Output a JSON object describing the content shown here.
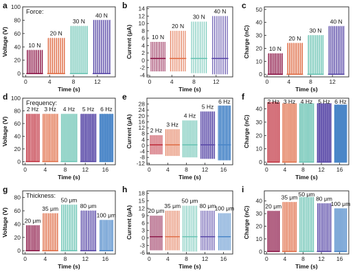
{
  "chart_data": [
    {
      "type": "line",
      "panel_label": "a",
      "inset_label": "Force:",
      "xlabel": "Time (s)",
      "ylabel": "Voltage (V)",
      "xlim": [
        -0.5,
        15
      ],
      "ylim": [
        -5,
        100
      ],
      "xticks": [
        0,
        4,
        8,
        12
      ],
      "yticks": [
        0,
        20,
        40,
        60,
        80,
        100
      ],
      "series": [
        {
          "name": "10 N",
          "color": "#8e1a4a",
          "x_range": [
            0.1,
            2.9
          ],
          "baseline": 0,
          "high": 35,
          "low": 0,
          "cycles": 9
        },
        {
          "name": "20 N",
          "color": "#e0704a",
          "x_range": [
            3.6,
            6.6
          ],
          "baseline": 0,
          "high": 53,
          "low": 0,
          "cycles": 9
        },
        {
          "name": "30 N",
          "color": "#6cc4b4",
          "x_range": [
            7.4,
            10.4
          ],
          "baseline": 0,
          "high": 71,
          "low": 0,
          "cycles": 9
        },
        {
          "name": "40 N",
          "color": "#5a4aa8",
          "x_range": [
            11.2,
            14.2
          ],
          "baseline": 0,
          "high": 80,
          "low": 0,
          "cycles": 9
        }
      ]
    },
    {
      "type": "line",
      "panel_label": "b",
      "inset_label": "",
      "xlabel": "Time (s)",
      "ylabel": "Current (μA)",
      "xlim": [
        -0.5,
        15
      ],
      "ylim": [
        -4.5,
        14.5
      ],
      "xticks": [
        0,
        4,
        8,
        12
      ],
      "yticks": [
        -4,
        -2,
        0,
        2,
        4,
        6,
        8,
        10,
        12,
        14
      ],
      "series": [
        {
          "name": "10 N",
          "color": "#8e1a4a",
          "x_range": [
            0.1,
            2.9
          ],
          "baseline": 0.5,
          "high": 5,
          "low": -3,
          "cycles": 9
        },
        {
          "name": "20 N",
          "color": "#e0704a",
          "x_range": [
            3.6,
            6.6
          ],
          "baseline": 0.5,
          "high": 8,
          "low": -3,
          "cycles": 9
        },
        {
          "name": "30 N",
          "color": "#6cc4b4",
          "x_range": [
            7.4,
            10.4
          ],
          "baseline": 0.5,
          "high": 10.5,
          "low": -3.5,
          "cycles": 9
        },
        {
          "name": "40 N",
          "color": "#5a4aa8",
          "x_range": [
            11.2,
            14.2
          ],
          "baseline": 0.5,
          "high": 12,
          "low": -3.8,
          "cycles": 9
        }
      ]
    },
    {
      "type": "line",
      "panel_label": "c",
      "inset_label": "",
      "xlabel": "Time (s)",
      "ylabel": "Charge (nC)",
      "xlim": [
        -0.5,
        15
      ],
      "ylim": [
        -2,
        52
      ],
      "xticks": [
        0,
        4,
        8,
        12
      ],
      "yticks": [
        0,
        10,
        20,
        30,
        40,
        50
      ],
      "series": [
        {
          "name": "10 N",
          "color": "#8e1a4a",
          "x_range": [
            0.1,
            2.9
          ],
          "baseline": 0,
          "high": 16,
          "low": 0,
          "cycles": 9
        },
        {
          "name": "20 N",
          "color": "#e0704a",
          "x_range": [
            3.6,
            6.6
          ],
          "baseline": 0,
          "high": 24,
          "low": 0,
          "cycles": 9
        },
        {
          "name": "30 N",
          "color": "#6cc4b4",
          "x_range": [
            7.4,
            10.4
          ],
          "baseline": 0,
          "high": 30,
          "low": 0,
          "cycles": 9
        },
        {
          "name": "40 N",
          "color": "#5a4aa8",
          "x_range": [
            11.2,
            14.2
          ],
          "baseline": 0,
          "high": 37,
          "low": 0,
          "cycles": 9
        }
      ]
    },
    {
      "type": "line",
      "panel_label": "d",
      "inset_label": "Frequency:",
      "xlabel": "Time (s)",
      "ylabel": "Voltage (V)",
      "xlim": [
        -0.5,
        18
      ],
      "ylim": [
        -5,
        100
      ],
      "xticks": [
        0,
        4,
        8,
        12,
        16
      ],
      "yticks": [
        0,
        20,
        40,
        60,
        80,
        100
      ],
      "series": [
        {
          "name": "2 Hz",
          "color": "#c0303e",
          "x_range": [
            0.1,
            2.9
          ],
          "baseline": 0,
          "high": 75,
          "low": 0,
          "cycles": 9
        },
        {
          "name": "3 Hz",
          "color": "#e0704a",
          "x_range": [
            3.4,
            6.6
          ],
          "baseline": 0,
          "high": 75,
          "low": 0,
          "cycles": 10
        },
        {
          "name": "4 Hz",
          "color": "#6cc4b4",
          "x_range": [
            7.1,
            10.4
          ],
          "baseline": 0,
          "high": 75,
          "low": 0,
          "cycles": 12
        },
        {
          "name": "5 Hz",
          "color": "#5a4aa8",
          "x_range": [
            11.0,
            14.2
          ],
          "baseline": 0,
          "high": 75,
          "low": 0,
          "cycles": 14
        },
        {
          "name": "6 Hz",
          "color": "#4a86c8",
          "x_range": [
            14.8,
            17.6
          ],
          "baseline": 0,
          "high": 75,
          "low": 0,
          "cycles": 15
        }
      ]
    },
    {
      "type": "line",
      "panel_label": "e",
      "inset_label": "",
      "xlabel": "Time (s)",
      "ylabel": "Current (μA)",
      "xlim": [
        -0.5,
        18
      ],
      "ylim": [
        -13,
        32
      ],
      "xticks": [
        0,
        4,
        8,
        12,
        16
      ],
      "yticks": [
        -12,
        -8,
        -4,
        0,
        4,
        8,
        12,
        16,
        20,
        24,
        28
      ],
      "series": [
        {
          "name": "2 Hz",
          "color": "#c0303e",
          "x_range": [
            0.1,
            2.9
          ],
          "baseline": 0.5,
          "high": 7,
          "low": -6,
          "cycles": 9
        },
        {
          "name": "3 Hz",
          "color": "#e0704a",
          "x_range": [
            3.4,
            6.6
          ],
          "baseline": 0.5,
          "high": 11,
          "low": -7,
          "cycles": 10
        },
        {
          "name": "4 Hz",
          "color": "#6cc4b4",
          "x_range": [
            7.1,
            10.4
          ],
          "baseline": 0.5,
          "high": 17,
          "low": -8,
          "cycles": 12
        },
        {
          "name": "5 Hz",
          "color": "#5a4aa8",
          "x_range": [
            11.0,
            14.2
          ],
          "baseline": 0.5,
          "high": 23,
          "low": -9,
          "cycles": 14
        },
        {
          "name": "6 Hz",
          "color": "#4a86c8",
          "x_range": [
            14.8,
            17.6
          ],
          "baseline": 0.5,
          "high": 27,
          "low": -10,
          "cycles": 15
        }
      ]
    },
    {
      "type": "line",
      "panel_label": "f",
      "inset_label": "",
      "xlabel": "Time (s)",
      "ylabel": "Charge (nC)",
      "xlim": [
        -0.5,
        18
      ],
      "ylim": [
        -2,
        48
      ],
      "xticks": [
        0,
        4,
        8,
        12,
        16
      ],
      "yticks": [
        0,
        10,
        20,
        30,
        40
      ],
      "series": [
        {
          "name": "2 Hz",
          "color": "#c0303e",
          "x_range": [
            0.1,
            2.9
          ],
          "baseline": 0,
          "high": 45,
          "low": 0,
          "cycles": 9
        },
        {
          "name": "3 Hz",
          "color": "#e0704a",
          "x_range": [
            3.4,
            6.6
          ],
          "baseline": 0,
          "high": 44,
          "low": 0,
          "cycles": 10
        },
        {
          "name": "4 Hz",
          "color": "#6cc4b4",
          "x_range": [
            7.1,
            10.4
          ],
          "baseline": 0,
          "high": 44,
          "low": 0,
          "cycles": 12
        },
        {
          "name": "5 Hz",
          "color": "#5a4aa8",
          "x_range": [
            11.0,
            14.2
          ],
          "baseline": 0,
          "high": 44,
          "low": 0,
          "cycles": 14
        },
        {
          "name": "6 Hz",
          "color": "#4a86c8",
          "x_range": [
            14.8,
            17.6
          ],
          "baseline": 0,
          "high": 43,
          "low": 0,
          "cycles": 15
        }
      ]
    },
    {
      "type": "line",
      "panel_label": "g",
      "inset_label": "Thickness:",
      "xlabel": "Time (s)",
      "ylabel": "Voltage (V)",
      "xlim": [
        -0.5,
        18
      ],
      "ylim": [
        -5,
        90
      ],
      "xticks": [
        0,
        4,
        8,
        12,
        16
      ],
      "yticks": [
        0,
        20,
        40,
        60,
        80
      ],
      "series": [
        {
          "name": "20 μm",
          "color": "#8e1a4a",
          "x_range": [
            0.1,
            2.9
          ],
          "baseline": 0,
          "high": 38,
          "low": 0,
          "cycles": 9
        },
        {
          "name": "35 μm",
          "color": "#e0704a",
          "x_range": [
            3.4,
            6.6
          ],
          "baseline": 0,
          "high": 56,
          "low": 0,
          "cycles": 9
        },
        {
          "name": "50 μm",
          "color": "#6cc4b4",
          "x_range": [
            7.1,
            10.4
          ],
          "baseline": 0,
          "high": 69,
          "low": 0,
          "cycles": 9
        },
        {
          "name": "80 μm",
          "color": "#5a4aa8",
          "x_range": [
            11.0,
            14.2
          ],
          "baseline": 0,
          "high": 60,
          "low": 0,
          "cycles": 9
        },
        {
          "name": "100 μm",
          "color": "#4a86c8",
          "x_range": [
            14.8,
            17.6
          ],
          "baseline": 0,
          "high": 46,
          "low": 0,
          "cycles": 9
        }
      ]
    },
    {
      "type": "line",
      "panel_label": "h",
      "inset_label": "",
      "xlabel": "Time (s)",
      "ylabel": "Current (μA)",
      "xlim": [
        -0.5,
        18
      ],
      "ylim": [
        -6.5,
        19
      ],
      "xticks": [
        0,
        4,
        8,
        12,
        16
      ],
      "yticks": [
        -6,
        -3,
        0,
        3,
        6,
        9,
        12,
        15,
        18
      ],
      "series": [
        {
          "name": "20 μm",
          "color": "#8e1a4a",
          "x_range": [
            0.1,
            2.9
          ],
          "baseline": 0.5,
          "high": 9,
          "low": -5,
          "cycles": 9
        },
        {
          "name": "35 μm",
          "color": "#e0704a",
          "x_range": [
            3.4,
            6.6
          ],
          "baseline": 0.5,
          "high": 11,
          "low": -5,
          "cycles": 9
        },
        {
          "name": "50 μm",
          "color": "#6cc4b4",
          "x_range": [
            7.1,
            10.4
          ],
          "baseline": 0.5,
          "high": 13,
          "low": -5.5,
          "cycles": 9
        },
        {
          "name": "80 μm",
          "color": "#5a4aa8",
          "x_range": [
            11.0,
            14.2
          ],
          "baseline": 0.5,
          "high": 11,
          "low": -5,
          "cycles": 9
        },
        {
          "name": "100 μm",
          "color": "#4a86c8",
          "x_range": [
            14.8,
            17.6
          ],
          "baseline": 0.5,
          "high": 10,
          "low": -5,
          "cycles": 9
        }
      ]
    },
    {
      "type": "line",
      "panel_label": "i",
      "inset_label": "",
      "xlabel": "Time (s)",
      "ylabel": "Charge (nC)",
      "xlim": [
        -0.5,
        18
      ],
      "ylim": [
        -2,
        48
      ],
      "xticks": [
        0,
        4,
        8,
        12,
        16
      ],
      "yticks": [
        0,
        10,
        20,
        30,
        40
      ],
      "series": [
        {
          "name": "20 μm",
          "color": "#8e1a4a",
          "x_range": [
            0.1,
            2.9
          ],
          "baseline": 0,
          "high": 32,
          "low": 0,
          "cycles": 9
        },
        {
          "name": "35 μm",
          "color": "#e0704a",
          "x_range": [
            3.4,
            6.6
          ],
          "baseline": 0,
          "high": 39,
          "low": 0,
          "cycles": 9
        },
        {
          "name": "50 μm",
          "color": "#6cc4b4",
          "x_range": [
            7.1,
            10.4
          ],
          "baseline": 0,
          "high": 43,
          "low": 0,
          "cycles": 9
        },
        {
          "name": "80 μm",
          "color": "#5a4aa8",
          "x_range": [
            11.0,
            14.2
          ],
          "baseline": 0,
          "high": 38,
          "low": 0,
          "cycles": 9
        },
        {
          "name": "100 μm",
          "color": "#4a86c8",
          "x_range": [
            14.8,
            17.6
          ],
          "baseline": 0,
          "high": 34,
          "low": 0,
          "cycles": 9
        }
      ]
    }
  ]
}
